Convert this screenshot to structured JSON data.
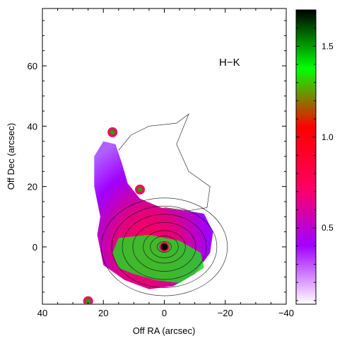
{
  "chart_data": {
    "type": "heatmap",
    "annotation": "H−K",
    "xlabel": "Off RA  (arcsec)",
    "ylabel": "Off Dec (arcsec)",
    "xlim": [
      40,
      -40
    ],
    "ylim": [
      -19,
      79
    ],
    "x_ticks": [
      40,
      20,
      0,
      -20,
      -40
    ],
    "x_tick_labels": [
      "40",
      "20",
      "0",
      "−20",
      "−40"
    ],
    "y_ticks": [
      0,
      20,
      40,
      60
    ],
    "y_tick_labels": [
      "0",
      "20",
      "40",
      "60"
    ],
    "colorbar": {
      "vmin": 0.08,
      "vmax": 1.7,
      "ticks": [
        0.5,
        1.0,
        1.5
      ],
      "tick_labels": [
        "0.5",
        "1.0",
        "1.5"
      ],
      "colors": [
        "#ffffff",
        "#a000ff",
        "#ff0060",
        "#ff0000",
        "#00ff00",
        "#000000"
      ]
    },
    "color_region": {
      "outline": [
        [
          20,
          35
        ],
        [
          23,
          30
        ],
        [
          23,
          20
        ],
        [
          21,
          10
        ],
        [
          22,
          4
        ],
        [
          20,
          -6
        ],
        [
          13,
          -11
        ],
        [
          5,
          -14
        ],
        [
          -3,
          -13
        ],
        [
          -10,
          -9
        ],
        [
          -15,
          -2
        ],
        [
          -16,
          5
        ],
        [
          -13,
          11
        ],
        [
          -7,
          12
        ],
        [
          1,
          13
        ],
        [
          8,
          16
        ],
        [
          12,
          21
        ],
        [
          14,
          28
        ],
        [
          16,
          34
        ]
      ]
    },
    "green_region": {
      "outline": [
        [
          15,
          3
        ],
        [
          5,
          4
        ],
        [
          -5,
          2
        ],
        [
          -12,
          -2
        ],
        [
          -13,
          -7
        ],
        [
          -5,
          -12
        ],
        [
          3,
          -11
        ],
        [
          10,
          -9
        ],
        [
          15,
          -7
        ],
        [
          17,
          -2
        ]
      ]
    },
    "sources": [
      {
        "x": 17,
        "y": 38
      },
      {
        "x": 8,
        "y": 19
      },
      {
        "x": 25,
        "y": -18
      },
      {
        "x": 0,
        "y": 0
      }
    ],
    "nucleus": {
      "x": 0,
      "y": 0
    },
    "contours": {
      "center": {
        "x": 0,
        "y": 0
      },
      "levels": [
        2,
        4,
        6,
        9,
        12,
        15,
        18
      ]
    },
    "faint_outline": [
      [
        15,
        32
      ],
      [
        11,
        37
      ],
      [
        5,
        40
      ],
      [
        -4,
        41
      ],
      [
        -8,
        44
      ],
      [
        -4,
        34
      ],
      [
        -8,
        25
      ],
      [
        -15,
        20
      ],
      [
        -14,
        13
      ],
      [
        -8,
        12
      ],
      [
        0,
        13
      ]
    ]
  }
}
